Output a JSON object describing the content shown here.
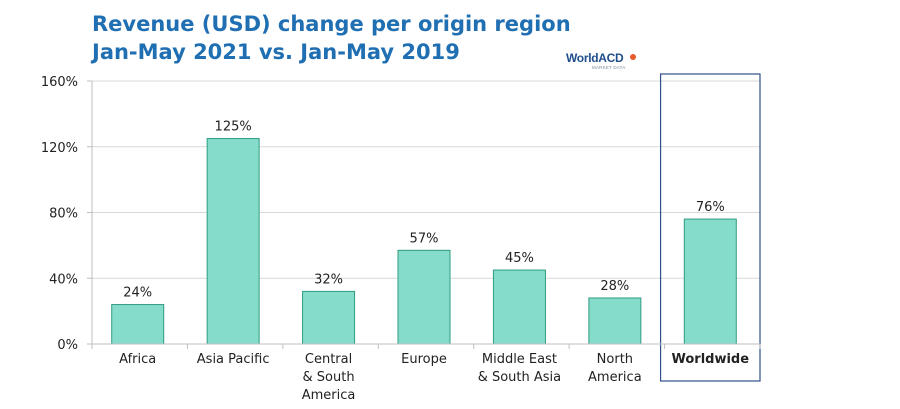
{
  "chart_data": {
    "type": "bar",
    "title_line1": "Revenue (USD) change per origin region",
    "title_line2": "Jan-May 2021 vs. Jan-May 2019",
    "categories": [
      [
        "Africa"
      ],
      [
        "Asia Pacific"
      ],
      [
        "Central",
        "& South",
        "America"
      ],
      [
        "Europe"
      ],
      [
        "Middle East",
        "& South Asia"
      ],
      [
        "North",
        "America"
      ],
      [
        "Worldwide"
      ]
    ],
    "values": [
      24,
      125,
      32,
      57,
      45,
      28,
      76
    ],
    "value_labels": [
      "24%",
      "125%",
      "32%",
      "57%",
      "45%",
      "28%",
      "76%"
    ],
    "ylim": [
      0,
      160
    ],
    "yticks": [
      0,
      40,
      80,
      120,
      160
    ],
    "ytick_labels": [
      "0%",
      "40%",
      "80%",
      "120%",
      "160%"
    ],
    "highlighted_category_index": 6,
    "bar_color": "#86dccb",
    "bar_edge_color": "#2e9c80",
    "highlight_box_color": "#2f4f8a",
    "gridlines": true,
    "xlabel": "",
    "ylabel": ""
  },
  "logo": {
    "text": "WorldACD",
    "subtext": "MARKET DATA"
  },
  "colors": {
    "title": "#1f6fb2",
    "grid": "#d9d9d9",
    "axis": "#bfbfbf"
  }
}
